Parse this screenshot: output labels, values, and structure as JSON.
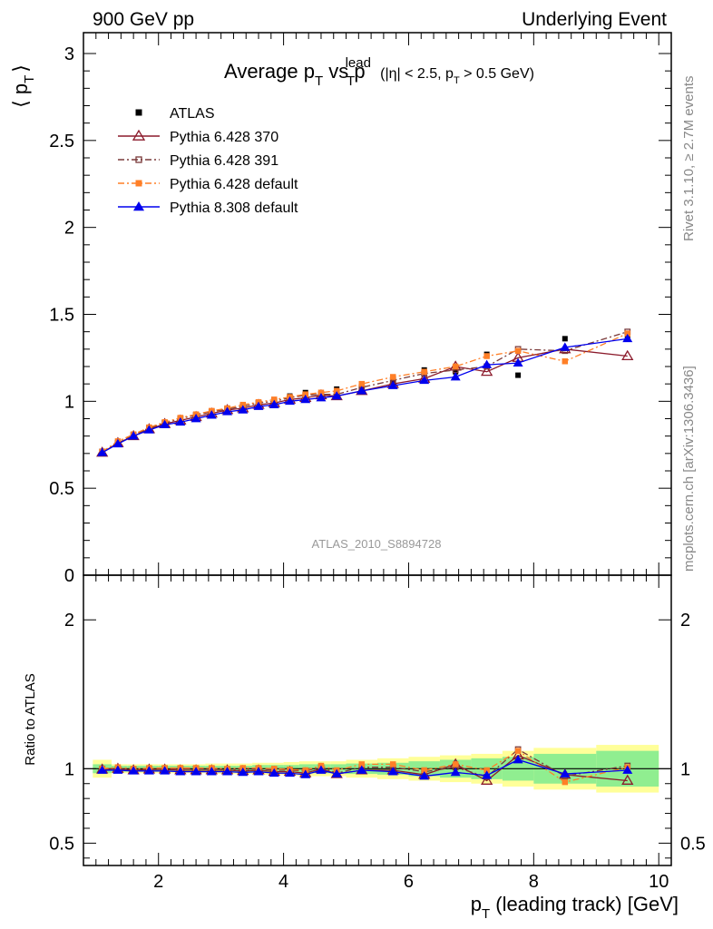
{
  "header": {
    "left": "900 GeV pp",
    "right": "Underlying Event"
  },
  "side_labels": {
    "upper": "Rivet 3.1.10, ≥ 2.7M events",
    "lower": "mcplots.cern.ch [arXiv:1306.3436]"
  },
  "chart_data": [
    {
      "type": "line",
      "title_main": "Average p",
      "title_sub": "T",
      "title_vs": " vs p",
      "title_sup": "lead",
      "title_cut": "(|η| < 2.5, p",
      "title_cut_tail": " > 0.5 GeV)",
      "watermark": "ATLAS_2010_S8894728",
      "ylabel": "⟨ p",
      "ylabel_sub": "T",
      "ylabel_close": "⟩",
      "ylim": [
        0,
        3.12
      ],
      "yticks": [
        0,
        0.5,
        1,
        1.5,
        2,
        2.5,
        3
      ],
      "ytick_labels": [
        "0",
        "0.5",
        "1",
        "1.5",
        "2",
        "2.5",
        "3"
      ],
      "xlim": [
        0.8,
        10.2
      ],
      "x": [
        1.1,
        1.35,
        1.6,
        1.85,
        2.1,
        2.35,
        2.6,
        2.85,
        3.1,
        3.35,
        3.6,
        3.85,
        4.1,
        4.35,
        4.6,
        4.85,
        5.25,
        5.75,
        6.25,
        6.75,
        7.25,
        7.75,
        8.5,
        9.5
      ],
      "series": [
        {
          "name": "ATLAS",
          "color": "#000000",
          "marker": "square-filled",
          "line": "none",
          "values": [
            0.71,
            0.76,
            0.81,
            0.845,
            0.875,
            0.9,
            0.92,
            0.94,
            0.96,
            0.975,
            0.99,
            1.01,
            1.03,
            1.05,
            1.03,
            1.07,
            1.07,
            1.11,
            1.18,
            1.17,
            1.27,
            1.15,
            1.36,
            1.37
          ]
        },
        {
          "name": "Pythia 6.428 370",
          "color": "#8b1a2b",
          "marker": "triangle-open",
          "line": "solid",
          "values": [
            0.705,
            0.76,
            0.8,
            0.84,
            0.87,
            0.89,
            0.91,
            0.93,
            0.95,
            0.96,
            0.98,
            0.99,
            1.01,
            1.02,
            1.035,
            1.03,
            1.06,
            1.1,
            1.13,
            1.2,
            1.17,
            1.25,
            1.3,
            1.26
          ]
        },
        {
          "name": "Pythia 6.428 391",
          "color": "#7a3a3a",
          "marker": "square-open",
          "line": "dashdot",
          "values": [
            0.71,
            0.76,
            0.805,
            0.845,
            0.875,
            0.9,
            0.92,
            0.94,
            0.955,
            0.97,
            0.99,
            1.0,
            1.02,
            1.035,
            1.04,
            1.04,
            1.08,
            1.12,
            1.16,
            1.18,
            1.2,
            1.3,
            1.29,
            1.4
          ]
        },
        {
          "name": "Pythia 6.428 default",
          "color": "#ff7f27",
          "marker": "square-filled",
          "line": "dashdot",
          "values": [
            0.71,
            0.77,
            0.81,
            0.85,
            0.88,
            0.905,
            0.925,
            0.945,
            0.96,
            0.98,
            0.995,
            1.01,
            1.025,
            1.04,
            1.05,
            1.06,
            1.1,
            1.14,
            1.17,
            1.2,
            1.26,
            1.29,
            1.23,
            1.39
          ]
        },
        {
          "name": "Pythia 8.308 default",
          "color": "#0000ee",
          "marker": "triangle-filled",
          "line": "solid",
          "values": [
            0.705,
            0.755,
            0.8,
            0.835,
            0.865,
            0.88,
            0.9,
            0.92,
            0.94,
            0.95,
            0.97,
            0.98,
            1.0,
            1.01,
            1.02,
            1.03,
            1.06,
            1.09,
            1.12,
            1.14,
            1.21,
            1.22,
            1.31,
            1.36
          ]
        }
      ]
    },
    {
      "type": "line",
      "ylabel": "Ratio to ATLAS",
      "ylim": [
        0.35,
        2.3
      ],
      "yticks": [
        0.5,
        1,
        2
      ],
      "ytick_labels": [
        "0.5",
        "1",
        "2"
      ],
      "xlim": [
        0.8,
        10.2
      ],
      "xlabel": "p",
      "xlabel_sub": "T",
      "xlabel_tail": " (leading track) [GeV]",
      "xticks": [
        2,
        4,
        6,
        8,
        10
      ],
      "xtick_labels": [
        "2",
        "4",
        "6",
        "8",
        "10"
      ],
      "x": [
        1.1,
        1.35,
        1.6,
        1.85,
        2.1,
        2.35,
        2.6,
        2.85,
        3.1,
        3.35,
        3.6,
        3.85,
        4.1,
        4.35,
        4.6,
        4.85,
        5.25,
        5.75,
        6.25,
        6.75,
        7.25,
        7.75,
        8.5,
        9.5
      ],
      "bin_edges": [
        0.95,
        1.25,
        1.5,
        1.75,
        2.0,
        2.25,
        2.5,
        2.75,
        3.0,
        3.25,
        3.5,
        3.75,
        4.0,
        4.25,
        4.5,
        4.75,
        5.0,
        5.5,
        6.0,
        6.5,
        7.0,
        7.5,
        8.0,
        9.0,
        10.0
      ],
      "band_inner": [
        0.03,
        0.02,
        0.02,
        0.02,
        0.02,
        0.02,
        0.02,
        0.02,
        0.02,
        0.02,
        0.025,
        0.025,
        0.025,
        0.03,
        0.03,
        0.03,
        0.035,
        0.04,
        0.05,
        0.06,
        0.07,
        0.08,
        0.1,
        0.12
      ],
      "band_outer": [
        0.06,
        0.03,
        0.03,
        0.03,
        0.03,
        0.03,
        0.03,
        0.035,
        0.035,
        0.035,
        0.04,
        0.04,
        0.045,
        0.05,
        0.05,
        0.05,
        0.06,
        0.07,
        0.08,
        0.09,
        0.1,
        0.12,
        0.14,
        0.16
      ],
      "band_colors": {
        "inner": "#90ee90",
        "outer": "#ffff99"
      },
      "series": [
        {
          "name": "Pythia 6.428 370",
          "color": "#8b1a2b",
          "marker": "triangle-open",
          "line": "solid",
          "values": [
            0.995,
            1.0,
            0.99,
            0.995,
            0.995,
            0.99,
            0.99,
            0.99,
            0.99,
            0.985,
            0.99,
            0.98,
            0.98,
            0.97,
            1.0,
            0.965,
            0.99,
            0.99,
            0.96,
            1.03,
            0.92,
            1.09,
            0.96,
            0.92
          ]
        },
        {
          "name": "Pythia 6.428 391",
          "color": "#7a3a3a",
          "marker": "square-open",
          "line": "dashdot",
          "values": [
            1.0,
            1.0,
            0.995,
            1.0,
            1.0,
            1.0,
            1.0,
            1.0,
            0.995,
            0.995,
            1.0,
            0.99,
            0.99,
            0.985,
            1.01,
            0.97,
            1.01,
            1.01,
            0.98,
            1.01,
            0.945,
            1.13,
            0.95,
            1.02
          ]
        },
        {
          "name": "Pythia 6.428 default",
          "color": "#ff7f27",
          "marker": "square-filled",
          "line": "dashdot",
          "values": [
            1.0,
            1.01,
            1.0,
            1.005,
            1.005,
            1.005,
            1.005,
            1.005,
            1.0,
            1.005,
            1.005,
            1.0,
            0.995,
            0.99,
            1.02,
            0.99,
            1.03,
            1.03,
            0.99,
            1.03,
            0.99,
            1.12,
            0.91,
            1.01
          ]
        },
        {
          "name": "Pythia 8.308 default",
          "color": "#0000ee",
          "marker": "triangle-filled",
          "line": "solid",
          "values": [
            0.99,
            0.99,
            0.985,
            0.985,
            0.985,
            0.98,
            0.98,
            0.98,
            0.98,
            0.975,
            0.98,
            0.97,
            0.97,
            0.96,
            0.99,
            0.965,
            0.99,
            0.98,
            0.95,
            0.975,
            0.955,
            1.06,
            0.965,
            0.99
          ]
        }
      ]
    }
  ]
}
